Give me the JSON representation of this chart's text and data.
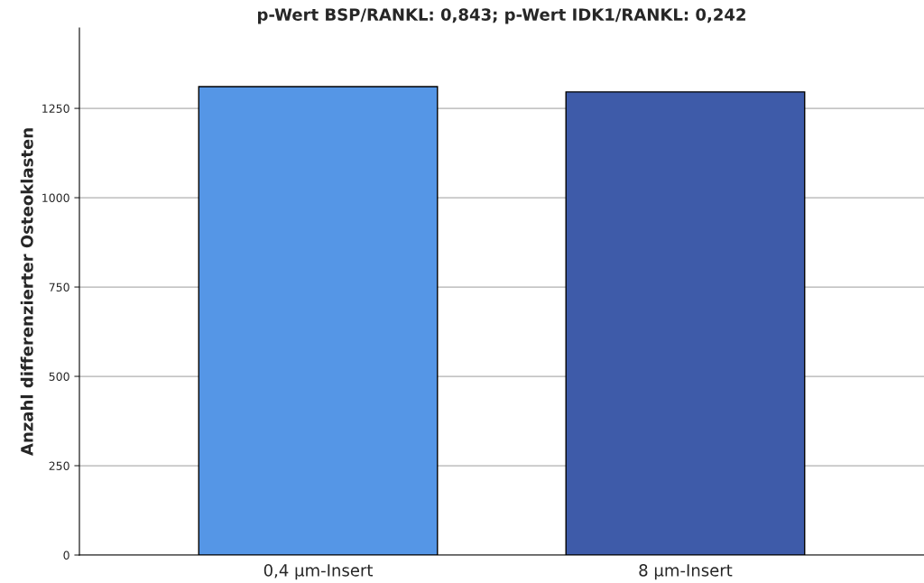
{
  "chart_data": {
    "type": "bar",
    "title": "p-Wert BSP/RANKL: 0,843; p-Wert IDK1/RANKL: 0,242",
    "ylabel": "Anzahl differenzierter Osteoklasten",
    "categories": [
      "0,4 µm-Insert",
      "8 µm-Insert"
    ],
    "values": [
      1311,
      1296
    ],
    "colors": [
      "#5596e6",
      "#3e5ba9"
    ],
    "ylim": [
      0,
      1475
    ],
    "yticks": [
      0,
      250,
      500,
      750,
      1000,
      1250
    ],
    "grid": "y"
  }
}
